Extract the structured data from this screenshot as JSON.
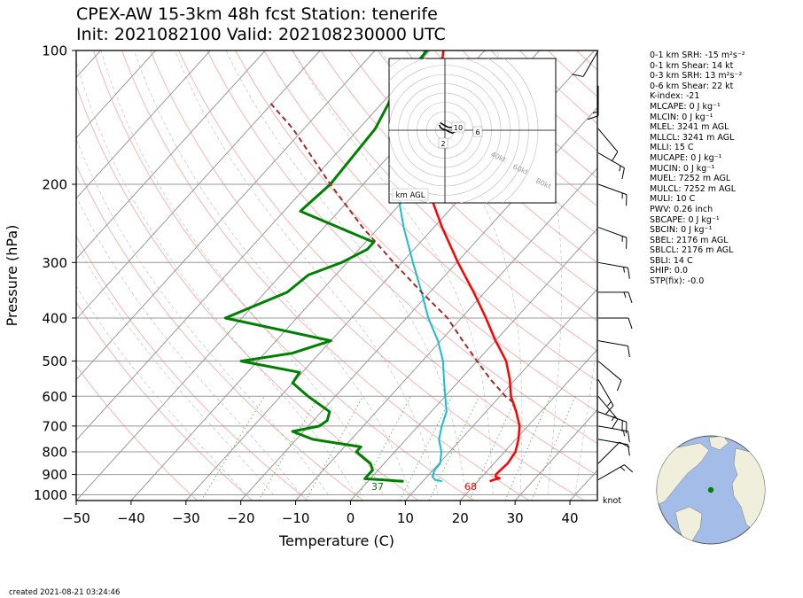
{
  "title_line1": "CPEX-AW 15-3km  48h fcst  Station: tenerife",
  "title_line2": "Init: 2021082100  Valid: 202108230000 UTC",
  "created": "created 2021-08-21 03:24:46",
  "knot_label": "knot",
  "hodograph_label": "km AGL",
  "indices": [
    "0-1 km SRH: -15 m²s⁻²",
    "0-1 km Shear: 14 kt",
    "0-3 km SRH: 13 m²s⁻²",
    "0-6 km Shear: 22 kt",
    "K-index: -21",
    "MLCAPE: 0 J kg⁻¹",
    "MLCIN: 0 J kg⁻¹",
    "MLEL: 3241 m AGL",
    "MLLCL: 3241 m AGL",
    "MLLI: 15 C",
    "MUCAPE: 0 J kg⁻¹",
    "MUCIN: 0 J kg⁻¹",
    "MUEL: 7252 m AGL",
    "MULCL: 7252 m AGL",
    "MULI: 10 C",
    "PWV: 0.26 inch",
    "SBCAPE: 0 J kg⁻¹",
    "SBCIN: 0 J kg⁻¹",
    "SBEL: 2176 m AGL",
    "SBLCL: 2176 m AGL",
    "SBLI: 14 C",
    "SHIP: 0.0",
    "STP(fix): -0.0"
  ],
  "colors": {
    "temperature": "#ff0000",
    "dewpoint": "#008000",
    "wetbulb": "#17becf",
    "parcel": "#a52a2a",
    "map_ocean": "#a3bde8",
    "map_land": "#f0efdc",
    "station": "#008000"
  },
  "chart_data": {
    "type": "line",
    "subtype": "skew-T log-P",
    "xlabel": "Temperature (C)",
    "ylabel": "Pressure (hPa)",
    "xlim": [
      -50,
      45
    ],
    "ylim": [
      1030,
      100
    ],
    "x_ticks": [
      -50,
      -40,
      -30,
      -20,
      -10,
      0,
      10,
      20,
      30,
      40
    ],
    "y_ticks": [
      100,
      200,
      300,
      400,
      500,
      600,
      700,
      800,
      900,
      1000
    ],
    "y_scale": "log",
    "grid": true,
    "surface_labels": {
      "temperature": "68",
      "dewpoint": "37"
    },
    "series": [
      {
        "key": "temperature",
        "points": [
          [
            932,
            22.2
          ],
          [
            925,
            22.7
          ],
          [
            918,
            23.5
          ],
          [
            910,
            22.5
          ],
          [
            900,
            22.2
          ],
          [
            880,
            22.3
          ],
          [
            850,
            22.5
          ],
          [
            800,
            22.0
          ],
          [
            750,
            20.5
          ],
          [
            700,
            18.5
          ],
          [
            650,
            15.5
          ],
          [
            600,
            12.0
          ],
          [
            550,
            9.0
          ],
          [
            500,
            5.3
          ],
          [
            450,
            0.0
          ],
          [
            400,
            -5.5
          ],
          [
            350,
            -12.0
          ],
          [
            300,
            -19.8
          ],
          [
            250,
            -28.5
          ],
          [
            200,
            -38.5
          ],
          [
            150,
            -47.0
          ],
          [
            120,
            -52.5
          ],
          [
            100,
            -57.5
          ]
        ]
      },
      {
        "key": "wetbulb",
        "points": [
          [
            932,
            13.5
          ],
          [
            925,
            12.0
          ],
          [
            910,
            11.0
          ],
          [
            880,
            10.3
          ],
          [
            850,
            10.2
          ],
          [
            800,
            8.5
          ],
          [
            750,
            6.0
          ],
          [
            700,
            4.3
          ],
          [
            650,
            2.8
          ],
          [
            600,
            0.0
          ],
          [
            550,
            -3.0
          ],
          [
            500,
            -6.2
          ],
          [
            450,
            -10.5
          ],
          [
            400,
            -16.0
          ],
          [
            350,
            -21.5
          ],
          [
            300,
            -28.0
          ],
          [
            250,
            -35.5
          ],
          [
            200,
            -44.0
          ],
          [
            150,
            -52.0
          ],
          [
            120,
            -56.5
          ],
          [
            100,
            -61.0
          ]
        ]
      },
      {
        "key": "dewpoint",
        "points": [
          [
            932,
            6.5
          ],
          [
            930,
            5.0
          ],
          [
            925,
            2.5
          ],
          [
            920,
            -1.0
          ],
          [
            900,
            -1.0
          ],
          [
            880,
            -1.0
          ],
          [
            850,
            -2.5
          ],
          [
            800,
            -7.0
          ],
          [
            780,
            -7.0
          ],
          [
            750,
            -17.0
          ],
          [
            720,
            -22.0
          ],
          [
            700,
            -18.0
          ],
          [
            680,
            -17.5
          ],
          [
            650,
            -18.5
          ],
          [
            600,
            -25.0
          ],
          [
            560,
            -30.0
          ],
          [
            530,
            -30.5
          ],
          [
            500,
            -43.0
          ],
          [
            480,
            -35.0
          ],
          [
            450,
            -30.0
          ],
          [
            400,
            -53.0
          ],
          [
            350,
            -46.0
          ],
          [
            320,
            -45.0
          ],
          [
            300,
            -41.0
          ],
          [
            280,
            -38.5
          ],
          [
            270,
            -38.5
          ],
          [
            230,
            -57.0
          ],
          [
            200,
            -56.0
          ],
          [
            150,
            -57.0
          ],
          [
            120,
            -60.0
          ],
          [
            100,
            -60.5
          ]
        ]
      },
      {
        "key": "parcel",
        "points": [
          [
            620,
            13.5
          ],
          [
            600,
            11.0
          ],
          [
            550,
            5.5
          ],
          [
            500,
            0.0
          ],
          [
            450,
            -6.0
          ],
          [
            400,
            -12.5
          ],
          [
            350,
            -21.5
          ],
          [
            300,
            -31.5
          ],
          [
            250,
            -43.0
          ],
          [
            200,
            -56.0
          ],
          [
            150,
            -72.0
          ],
          [
            130,
            -81.0
          ]
        ]
      }
    ],
    "wind_barbs": [
      {
        "p": 925,
        "speed_kt": 15,
        "dir_deg": 60
      },
      {
        "p": 850,
        "speed_kt": 10,
        "dir_deg": 45
      },
      {
        "p": 750,
        "speed_kt": 10,
        "dir_deg": 100
      },
      {
        "p": 700,
        "speed_kt": 15,
        "dir_deg": 100
      },
      {
        "p": 650,
        "speed_kt": 20,
        "dir_deg": 110
      },
      {
        "p": 600,
        "speed_kt": 15,
        "dir_deg": 140
      },
      {
        "p": 550,
        "speed_kt": 15,
        "dir_deg": 150
      },
      {
        "p": 500,
        "speed_kt": 10,
        "dir_deg": 130
      },
      {
        "p": 450,
        "speed_kt": 10,
        "dir_deg": 100
      },
      {
        "p": 400,
        "speed_kt": 10,
        "dir_deg": 90
      },
      {
        "p": 350,
        "speed_kt": 15,
        "dir_deg": 90
      },
      {
        "p": 300,
        "speed_kt": 15,
        "dir_deg": 100
      },
      {
        "p": 250,
        "speed_kt": 15,
        "dir_deg": 110
      },
      {
        "p": 200,
        "speed_kt": 15,
        "dir_deg": 110
      },
      {
        "p": 170,
        "speed_kt": 15,
        "dir_deg": 120
      },
      {
        "p": 150,
        "speed_kt": 10,
        "dir_deg": 140
      },
      {
        "p": 120,
        "speed_kt": 15,
        "dir_deg": 180
      },
      {
        "p": 100,
        "speed_kt": 10,
        "dir_deg": 210
      }
    ],
    "hodograph": {
      "ring_labels": [
        "40kt",
        "60kt",
        "80kt"
      ],
      "height_labels": [
        "2",
        "6",
        "10"
      ],
      "trace_kt": [
        [
          -6,
          6
        ],
        [
          -5,
          3
        ],
        [
          -2,
          1
        ],
        [
          2,
          0
        ],
        [
          3,
          -1
        ],
        [
          5,
          -2
        ],
        [
          8,
          -3
        ],
        [
          10,
          -2
        ],
        [
          12,
          -1
        ],
        [
          13,
          0
        ],
        [
          12,
          2
        ],
        [
          8,
          3
        ],
        [
          4,
          3
        ],
        [
          0,
          5
        ],
        [
          -5,
          8
        ]
      ]
    }
  }
}
